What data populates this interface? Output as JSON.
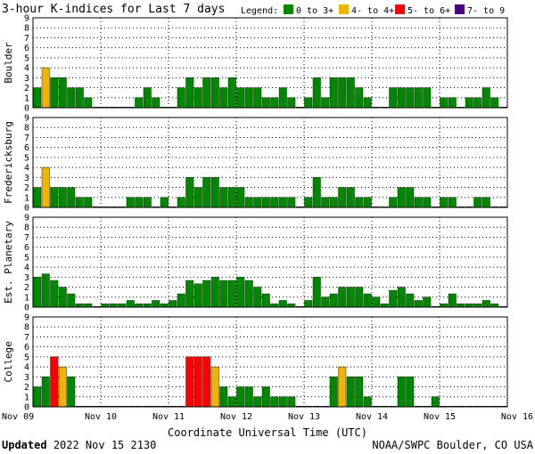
{
  "chart_data": {
    "type": "bar",
    "title": "3-hour K-indices for Last 7 days",
    "legend": {
      "label": "Legend:",
      "placement": "top-right",
      "items": [
        {
          "label": "0 to 3+",
          "color": "#008800"
        },
        {
          "label": "4- to 4+",
          "color": "#f0b400"
        },
        {
          "label": "5- to 6+",
          "color": "#ff0000"
        },
        {
          "label": "7- to 9",
          "color": "#4b0082"
        }
      ]
    },
    "xlabel": "Coordinate Universal Time (UTC)",
    "x_tick_labels": [
      "Nov 09",
      "Nov 10",
      "Nov 11",
      "Nov 12",
      "Nov 13",
      "Nov 14",
      "Nov 15",
      "Nov 16"
    ],
    "ylim": [
      0,
      9
    ],
    "y_ticks": [
      0,
      1,
      2,
      3,
      4,
      5,
      6,
      7,
      8,
      9
    ],
    "intervals_per_day": 8,
    "grid": "dotted",
    "panels": [
      {
        "name": "Boulder",
        "values": [
          2,
          4,
          3,
          3,
          2,
          2,
          1,
          0,
          0,
          0,
          0,
          0,
          1,
          2,
          1,
          0,
          0,
          2,
          3,
          2,
          3,
          3,
          2,
          3,
          2,
          2,
          2,
          1,
          1,
          2,
          1,
          0,
          1,
          3,
          1,
          3,
          3,
          3,
          2,
          1,
          0,
          0,
          2,
          2,
          2,
          2,
          2,
          0,
          1,
          1,
          0,
          1,
          1,
          2,
          1,
          0
        ]
      },
      {
        "name": "Fredericksburg",
        "values": [
          2,
          4,
          2,
          2,
          2,
          1,
          1,
          0,
          0,
          0,
          0,
          1,
          1,
          1,
          0,
          1,
          0,
          1,
          3,
          2,
          3,
          3,
          2,
          2,
          2,
          1,
          1,
          1,
          1,
          1,
          1,
          0,
          1,
          3,
          1,
          1,
          2,
          2,
          1,
          1,
          0,
          0,
          1,
          2,
          2,
          1,
          1,
          0,
          1,
          1,
          0,
          0,
          1,
          1,
          0,
          0
        ]
      },
      {
        "name": "Est. Planetary",
        "values": [
          3.0,
          3.33,
          2.67,
          2.0,
          1.33,
          0.33,
          0.33,
          0.0,
          0.33,
          0.33,
          0.33,
          0.67,
          0.33,
          0.33,
          0.67,
          0.33,
          0.67,
          1.33,
          2.67,
          2.33,
          2.67,
          3.0,
          2.67,
          2.67,
          3.0,
          2.67,
          2.0,
          1.33,
          0.33,
          0.67,
          0.33,
          0.0,
          0.67,
          3.0,
          1.0,
          1.33,
          2.0,
          2.0,
          2.0,
          1.33,
          1.0,
          0.33,
          1.67,
          2.0,
          1.33,
          0.67,
          1.0,
          0.0,
          0.33,
          1.33,
          0.33,
          0.33,
          0.33,
          0.67,
          0.33,
          0.0
        ]
      },
      {
        "name": "College",
        "values": [
          2,
          3,
          5,
          4,
          3,
          0,
          0,
          0,
          0,
          0,
          0,
          0,
          0,
          0,
          0,
          0,
          0,
          0,
          5,
          5,
          5,
          4,
          2,
          1,
          2,
          2,
          1,
          2,
          1,
          1,
          1,
          0,
          0,
          0,
          0,
          3,
          4,
          3,
          3,
          1,
          0,
          0,
          0,
          3,
          3,
          0,
          0,
          1,
          0,
          0,
          0,
          0,
          0,
          0,
          0,
          0
        ]
      }
    ]
  },
  "footer": {
    "updated_label": "Updated",
    "updated_time": "2022 Nov 15 2130",
    "source": "NOAA/SWPC Boulder, CO USA"
  }
}
